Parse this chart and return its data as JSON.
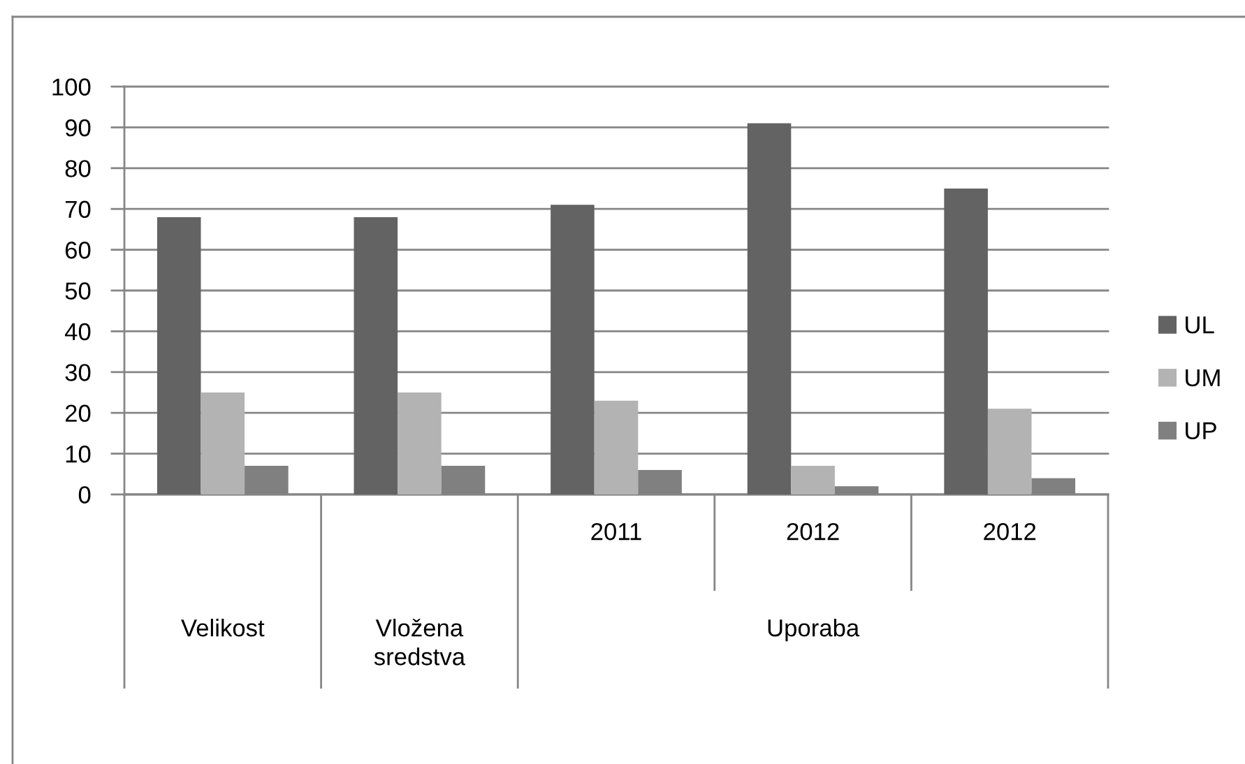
{
  "chart_data": {
    "type": "bar",
    "categories": [
      "Velikost",
      "Vložena sredstva",
      "2011",
      "2012",
      "2012"
    ],
    "annotations": [
      "Uporaba"
    ],
    "series": [
      {
        "name": "UL",
        "color": "#636363",
        "values": [
          68,
          68,
          71,
          91,
          75
        ]
      },
      {
        "name": "UM",
        "color": "#b3b3b3",
        "values": [
          25,
          25,
          23,
          7,
          21
        ]
      },
      {
        "name": "UP",
        "color": "#808080",
        "values": [
          7,
          7,
          6,
          2,
          4
        ]
      }
    ],
    "ylim": [
      0,
      100
    ],
    "yticks": [
      0,
      10,
      20,
      30,
      40,
      50,
      60,
      70,
      80,
      90,
      100
    ],
    "grid": "y",
    "legend": "right"
  }
}
